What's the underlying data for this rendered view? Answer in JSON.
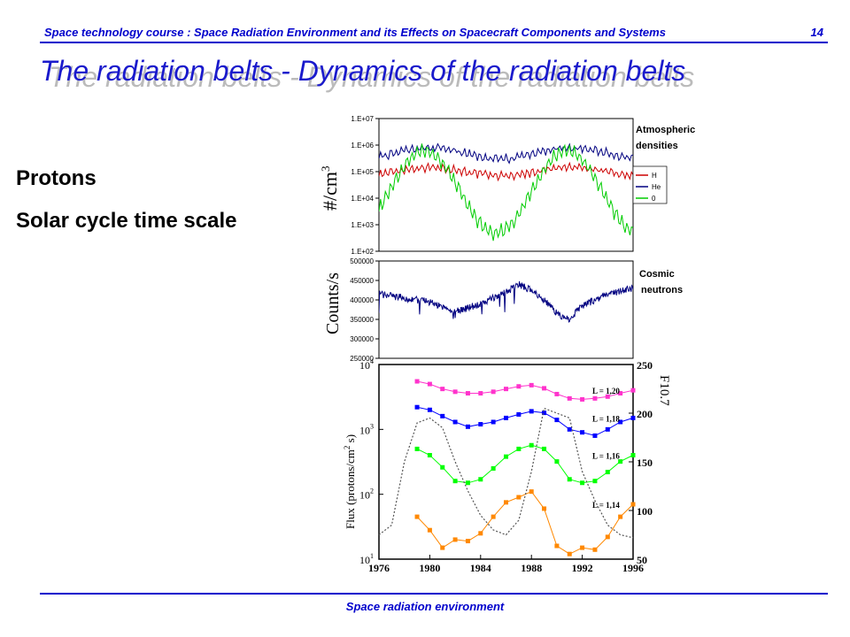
{
  "header": {
    "course": "Space technology course : Space Radiation Environment and its Effects on Spacecraft Components and Systems",
    "page_number": "14"
  },
  "title": "The radiation belts - Dynamics of the radiation belts",
  "bullets": [
    "Protons",
    "Solar cycle time scale"
  ],
  "footer": "Space radiation environment",
  "colors": {
    "accent": "#0000cc"
  },
  "chart_data": [
    {
      "type": "line",
      "ylabel": "#/cm",
      "ylabel_sup": "3",
      "y_scale": "log",
      "ylim": [
        100,
        10000000
      ],
      "y_ticks": [
        "1.E+07",
        "1.E+06",
        "1.E+05",
        "1.E+04",
        "1.E+03",
        "1.E+02"
      ],
      "annotation": [
        "Atmospheric",
        "densities"
      ],
      "legend_placement": "right",
      "series": [
        {
          "name": "H",
          "color": "#cc0000",
          "level_range": [
            40000,
            200000
          ]
        },
        {
          "name": "He",
          "color": "#000080",
          "level_range": [
            150000,
            1200000
          ]
        },
        {
          "name": "0",
          "color": "#00cc00",
          "level_range": [
            500,
            600000
          ]
        }
      ]
    },
    {
      "type": "line",
      "ylabel": "Counts/s",
      "ylim": [
        250000,
        500000
      ],
      "y_ticks": [
        "500000",
        "450000",
        "400000",
        "350000",
        "300000",
        "250000"
      ],
      "annotation": [
        "Cosmic",
        "neutrons"
      ],
      "series": [
        {
          "color": "#000080",
          "x": [
            1976,
            1978,
            1980,
            1982,
            1984,
            1986,
            1987,
            1988,
            1989,
            1990,
            1991,
            1992,
            1994,
            1996
          ],
          "values": [
            415000,
            405000,
            395000,
            370000,
            390000,
            420000,
            440000,
            425000,
            400000,
            365000,
            350000,
            385000,
            415000,
            430000
          ]
        }
      ]
    },
    {
      "type": "line",
      "ylabel": "Flux (protons/cm",
      "ylabel_sup": "2",
      "ylabel_end": " s)",
      "y2label": "F10.7",
      "y_scale": "log",
      "ylim": [
        10,
        10000
      ],
      "xlim": [
        1976,
        1996
      ],
      "y2lim": [
        50,
        250
      ],
      "x_ticks": [
        "1976",
        "1980",
        "1984",
        "1988",
        "1992",
        "1996"
      ],
      "y_ticks_base": "10",
      "y_ticks_exp": [
        "4",
        "3",
        "2",
        "1"
      ],
      "y2_ticks": [
        "250",
        "200",
        "150",
        "100",
        "50"
      ],
      "series": [
        {
          "name": "L = 1,20",
          "color": "#ff33cc",
          "x": [
            1979,
            1980,
            1981,
            1982,
            1983,
            1984,
            1985,
            1986,
            1987,
            1988,
            1989,
            1990,
            1991,
            1992,
            1993,
            1994,
            1995,
            1996
          ],
          "values": [
            5500,
            5000,
            4200,
            3800,
            3600,
            3600,
            3800,
            4200,
            4600,
            4800,
            4300,
            3500,
            3000,
            2900,
            3000,
            3200,
            3600,
            4000
          ]
        },
        {
          "name": "L = 1,18",
          "color": "#0000ff",
          "x": [
            1979,
            1980,
            1981,
            1982,
            1983,
            1984,
            1985,
            1986,
            1987,
            1988,
            1989,
            1990,
            1991,
            1992,
            1993,
            1994,
            1995,
            1996
          ],
          "values": [
            2200,
            2000,
            1600,
            1300,
            1100,
            1200,
            1300,
            1500,
            1700,
            1900,
            1800,
            1400,
            1000,
            900,
            800,
            1000,
            1300,
            1500
          ]
        },
        {
          "name": "L = 1,16",
          "color": "#00ff00",
          "x": [
            1979,
            1980,
            1981,
            1982,
            1983,
            1984,
            1985,
            1986,
            1987,
            1988,
            1989,
            1990,
            1991,
            1992,
            1993,
            1994,
            1995,
            1996
          ],
          "values": [
            500,
            400,
            260,
            160,
            150,
            170,
            250,
            380,
            500,
            570,
            500,
            320,
            170,
            150,
            160,
            220,
            320,
            400
          ]
        },
        {
          "name": "L = 1,14",
          "color": "#ff8800",
          "x": [
            1979,
            1980,
            1981,
            1982,
            1983,
            1984,
            1985,
            1986,
            1987,
            1988,
            1989,
            1990,
            1991,
            1992,
            1993,
            1994,
            1995,
            1996
          ],
          "values": [
            45,
            28,
            15,
            20,
            19,
            25,
            45,
            75,
            90,
            110,
            60,
            16,
            12,
            15,
            14,
            22,
            45,
            70
          ]
        },
        {
          "name": "F10.7",
          "axis": "right",
          "color": "#555555",
          "x": [
            1976,
            1977,
            1978,
            1979,
            1980,
            1981,
            1982,
            1983,
            1984,
            1985,
            1986,
            1987,
            1988,
            1989,
            1990,
            1991,
            1992,
            1993,
            1994,
            1995,
            1996
          ],
          "values": [
            75,
            85,
            150,
            190,
            195,
            185,
            150,
            120,
            95,
            80,
            75,
            90,
            140,
            205,
            200,
            195,
            140,
            110,
            85,
            75,
            72
          ]
        }
      ]
    }
  ]
}
